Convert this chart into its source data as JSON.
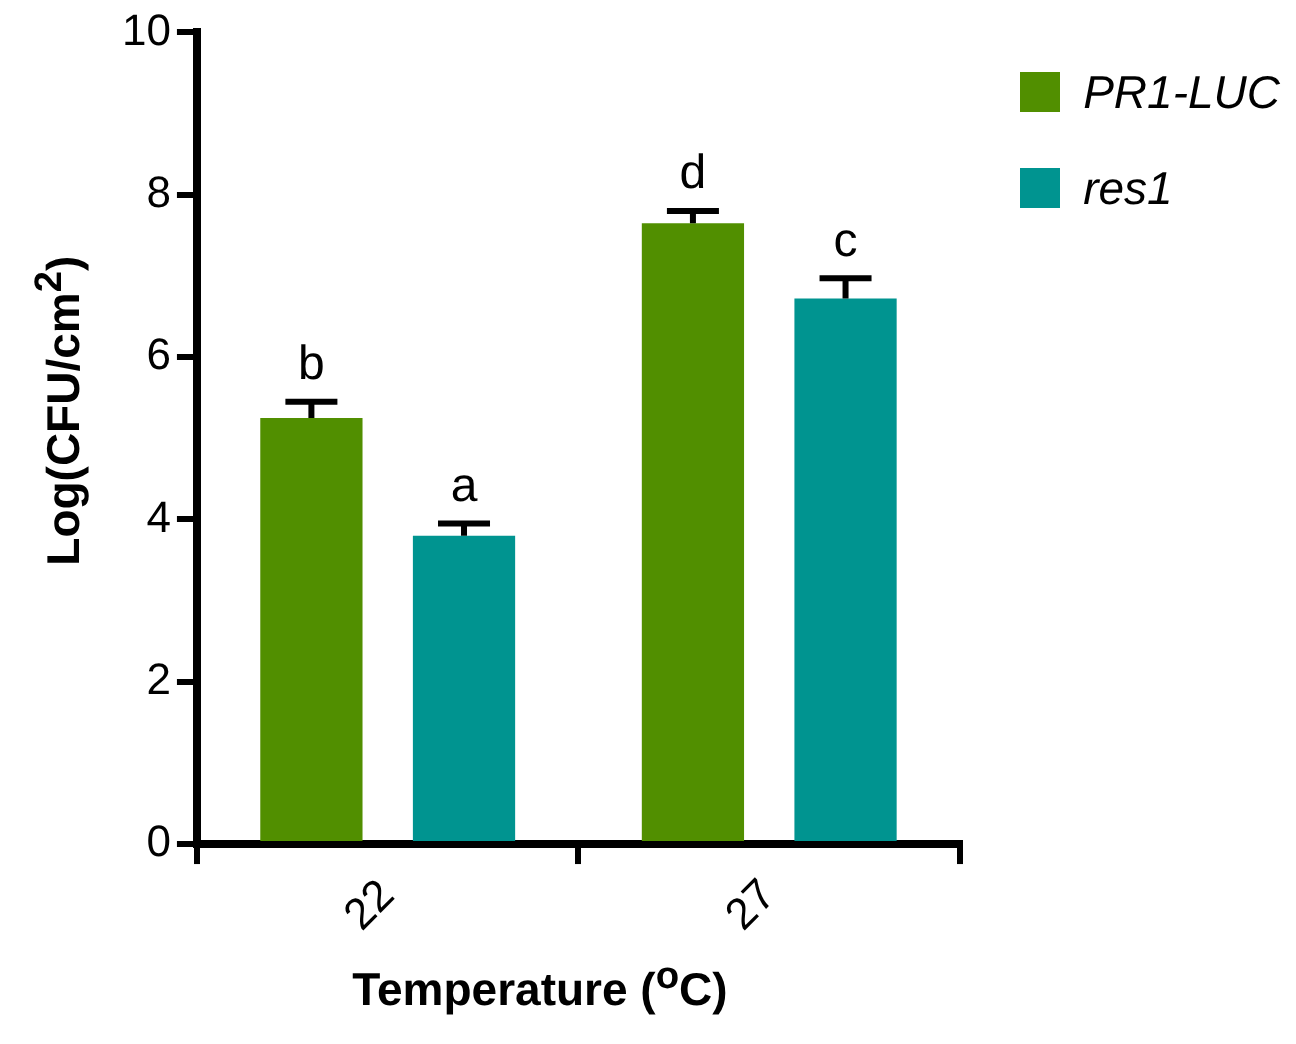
{
  "chart_data": {
    "type": "bar",
    "xlabel": "Temperature ($^{o}$C)",
    "ylabel": "Log(CFU/cm$^{2}$)",
    "categories": [
      "22",
      "27"
    ],
    "series": [
      {
        "name": "PR1-LUC",
        "color": "#518f00",
        "values": [
          5.25,
          7.65
        ],
        "errors": [
          0.2,
          0.15
        ],
        "value_labels": [
          "b",
          "d"
        ]
      },
      {
        "name": "res1",
        "color": "#009490",
        "values": [
          3.8,
          6.72
        ],
        "errors": [
          0.15,
          0.25
        ],
        "value_labels": [
          "a",
          "c"
        ]
      }
    ],
    "ylim": [
      0,
      10
    ],
    "yticks": [
      0,
      2,
      4,
      6,
      8,
      10
    ],
    "grid": false,
    "legend": "top right"
  }
}
